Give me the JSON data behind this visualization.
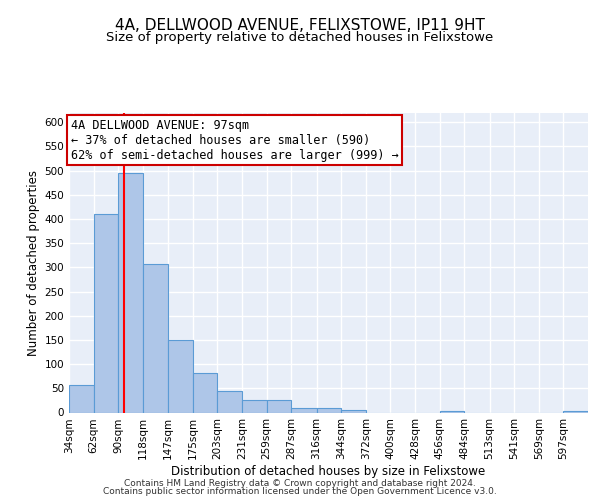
{
  "title": "4A, DELLWOOD AVENUE, FELIXSTOWE, IP11 9HT",
  "subtitle": "Size of property relative to detached houses in Felixstowe",
  "xlabel": "Distribution of detached houses by size in Felixstowe",
  "ylabel": "Number of detached properties",
  "footer_line1": "Contains HM Land Registry data © Crown copyright and database right 2024.",
  "footer_line2": "Contains public sector information licensed under the Open Government Licence v3.0.",
  "annotation_title": "4A DELLWOOD AVENUE: 97sqm",
  "annotation_line1": "← 37% of detached houses are smaller (590)",
  "annotation_line2": "62% of semi-detached houses are larger (999) →",
  "red_line_x": 97,
  "bin_edges": [
    34,
    62,
    90,
    118,
    147,
    175,
    203,
    231,
    259,
    287,
    316,
    344,
    372,
    400,
    428,
    456,
    484,
    513,
    541,
    569,
    597,
    625
  ],
  "bin_labels": [
    "34sqm",
    "62sqm",
    "90sqm",
    "118sqm",
    "147sqm",
    "175sqm",
    "203sqm",
    "231sqm",
    "259sqm",
    "287sqm",
    "316sqm",
    "344sqm",
    "372sqm",
    "400sqm",
    "428sqm",
    "456sqm",
    "484sqm",
    "513sqm",
    "541sqm",
    "569sqm",
    "597sqm"
  ],
  "bar_heights": [
    57,
    410,
    495,
    307,
    150,
    82,
    44,
    25,
    25,
    10,
    10,
    5,
    0,
    0,
    0,
    3,
    0,
    0,
    0,
    0,
    3
  ],
  "bar_color": "#aec6e8",
  "bar_edge_color": "#5b9bd5",
  "background_color": "#e8eef8",
  "grid_color": "#ffffff",
  "ylim": [
    0,
    620
  ],
  "yticks": [
    0,
    50,
    100,
    150,
    200,
    250,
    300,
    350,
    400,
    450,
    500,
    550,
    600
  ],
  "title_fontsize": 11,
  "subtitle_fontsize": 9.5,
  "axis_label_fontsize": 8.5,
  "tick_fontsize": 7.5,
  "footer_fontsize": 6.5,
  "annotation_fontsize": 8.5
}
